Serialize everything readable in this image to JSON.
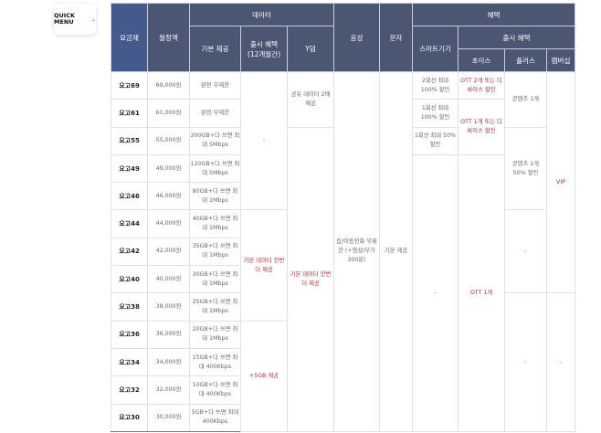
{
  "quick_menu": {
    "label": "QUICK MENU",
    "icon": "chevron-down-icon"
  },
  "header": {
    "plan": "요금제",
    "price": "월정액",
    "data": "데이터",
    "data_basic": "기본 제공",
    "data_launch": "출시 혜택\n(12개월간)",
    "ydum": "Y덤",
    "voice": "음성",
    "sms": "문자",
    "benefit": "혜택",
    "smart": "스마트기기",
    "launch": "출시 혜택",
    "choice": "초이스",
    "plus": "플러스",
    "membership": "멤버십"
  },
  "rows": [
    {
      "name": "요고69",
      "price": "69,000원",
      "basic": "완전 무제한"
    },
    {
      "name": "요고61",
      "price": "61,000원",
      "basic": "완전 무제한"
    },
    {
      "name": "요고55",
      "price": "55,000원",
      "basic": "200GB+다 쓰면 최대 5Mbps"
    },
    {
      "name": "요고49",
      "price": "49,000원",
      "basic": "120GB+다 쓰면 최대 5Mbps"
    },
    {
      "name": "요고46",
      "price": "46,000원",
      "basic": "80GB+다 쓰면 최대 1Mbps"
    },
    {
      "name": "요고44",
      "price": "44,000원",
      "basic": "40GB+다 쓰면 최대 1Mbps"
    },
    {
      "name": "요고42",
      "price": "42,000원",
      "basic": "35GB+다 쓰면 최대 1Mbps"
    },
    {
      "name": "요고40",
      "price": "40,000원",
      "basic": "30GB+다 쓰면 최대 1Mbps"
    },
    {
      "name": "요고38",
      "price": "38,000원",
      "basic": "25GB+다 쓰면 최대 1Mbps"
    },
    {
      "name": "요고36",
      "price": "36,000원",
      "basic": "20GB+다 쓰면 최대 1Mbps"
    },
    {
      "name": "요고34",
      "price": "34,000원",
      "basic": "15GB+다 쓰면 최대 400Kbps"
    },
    {
      "name": "요고32",
      "price": "32,000원",
      "basic": "10GB+다 쓰면 최대 400Kbps"
    },
    {
      "name": "요고30",
      "price": "30,000원",
      "basic": "5GB+다 쓰면 최대 400Kbps"
    }
  ],
  "spans": {
    "launch_none": "-",
    "launch_again": "기본 데이터 한번 더 제공",
    "launch_5gb": "+5GB 제공",
    "ydum_share": "공유 데이터 2배 제공",
    "ydum_again": "기본 데이터 한번 더 제공",
    "voice": "집/이동전화 무제한 (+영상/부가 300분)",
    "sms": "기본 제공",
    "smart_0": "2회선 최대 100% 할인",
    "smart_1": "1회선 최대 100% 할인",
    "smart_2": "1회선 최대 50% 할인",
    "smart_rest": "-",
    "choice_0": "OTT 2개 또는 디바이스 할인",
    "choice_1": "OTT 1개 또는 디바이스 할인",
    "choice_rest": "OTT 1개",
    "plus_0": "콘텐츠 1개",
    "plus_1": "콘텐츠 1개 50% 할인",
    "plus_2": "-",
    "plus_3": "-",
    "member_0": "VIP",
    "member_1": "-"
  }
}
